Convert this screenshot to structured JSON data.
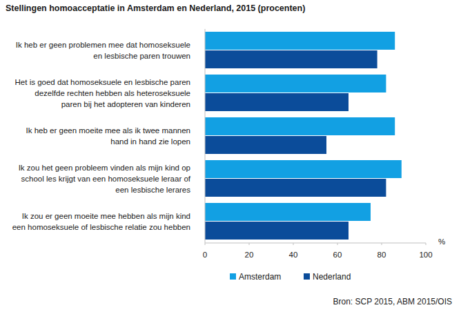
{
  "chart_data": {
    "type": "bar",
    "orientation": "horizontal",
    "title": "Stellingen homoacceptatie in Amsterdam en Nederland, 2015 (procenten)",
    "categories": [
      "Ik heb er geen problemen mee dat homoseksuele\nen lesbische paren trouwen",
      "Het is goed dat homoseksuele en lesbische paren\ndezelfde rechten hebben als heteroseksuele\nparen bij het adopteren van kinderen",
      "Ik heb er geen moeite mee als ik twee mannen\nhand in hand zie lopen",
      "Ik zou het geen probleem vinden als mijn kind op\nschool les krijgt van een homoseksuele leraar of\neen lesbische lerares",
      "Ik zou er geen moeite mee hebben als mijn kind\neen homoseksuele of lesbische relatie zou hebben"
    ],
    "series": [
      {
        "name": "Amsterdam",
        "color": "#12a0e3",
        "values": [
          86,
          82,
          86,
          89,
          75
        ]
      },
      {
        "name": "Nederland",
        "color": "#0b4c9a",
        "values": [
          78,
          65,
          55,
          82,
          65
        ]
      }
    ],
    "xlabel": "%",
    "xlim": [
      0,
      100
    ],
    "xticks": [
      0,
      20,
      40,
      60,
      80,
      100
    ],
    "grid": false,
    "legend": "bottom",
    "source": "Bron: SCP 2015, ABM 2015/OIS"
  }
}
